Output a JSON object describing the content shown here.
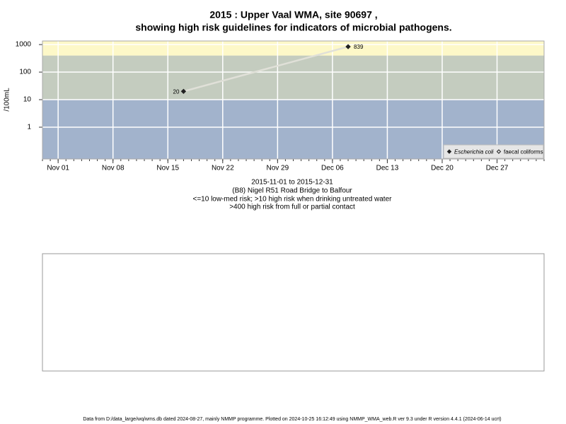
{
  "chart_data": {
    "type": "line",
    "title": "2015 : Upper Vaal WMA, site 90697 ,",
    "subtitle": "showing high risk guidelines for indicators of microbial pathogens.",
    "y_label": "/100mL",
    "y_log": true,
    "grid": true,
    "ylim": [
      0.07,
      1350
    ],
    "yticks": [
      1,
      10,
      100,
      1000
    ],
    "xlim": [
      "2015-10-30",
      "2016-01-02"
    ],
    "xticks": [
      {
        "value": "2015-11-01",
        "label": "Nov 01"
      },
      {
        "value": "2015-11-08",
        "label": "Nov 08"
      },
      {
        "value": "2015-11-15",
        "label": "Nov 15"
      },
      {
        "value": "2015-11-22",
        "label": "Nov 22"
      },
      {
        "value": "2015-11-29",
        "label": "Nov 29"
      },
      {
        "value": "2015-12-06",
        "label": "Dec 06"
      },
      {
        "value": "2015-12-13",
        "label": "Dec 13"
      },
      {
        "value": "2015-12-20",
        "label": "Dec 20"
      },
      {
        "value": "2015-12-27",
        "label": "Dec 27"
      }
    ],
    "bands": [
      {
        "upper": 10,
        "color": "#a2b3cc"
      },
      {
        "lower": 10,
        "upper": 400,
        "color": "#c4ccbf"
      },
      {
        "lower": 400,
        "color": "#fdf8c8"
      }
    ],
    "series": [
      {
        "name": "Escherichia coli",
        "color": "#222222",
        "line_color": "#e0e0d8",
        "marker": "filled",
        "x": [
          "2015-11-17",
          "2015-12-08"
        ],
        "values": [
          20,
          839
        ]
      },
      {
        "name": "faecal coliforms",
        "color": "#222222",
        "line_color": "#e0e0d8",
        "marker": "open",
        "x": [],
        "values": []
      }
    ],
    "legend": "bottom-right",
    "notes": [
      "2015-11-01 to 2015-12-31",
      "(B8) Nigel R51 Road Bridge to Balfour",
      "<=10 low-med risk; >10 high risk when drinking untreated water",
      ">400 high risk from full or partial contact"
    ],
    "footer": "Data from D:/data_large/wq/wms.db dated 2024-08-27, mainly NMMP programme. Plotted on 2024-10-25 16:12:49 using NMMP_WMA_web.R ver 9.3 under R version 4.4.1 (2024-06-14 ucrt)"
  }
}
